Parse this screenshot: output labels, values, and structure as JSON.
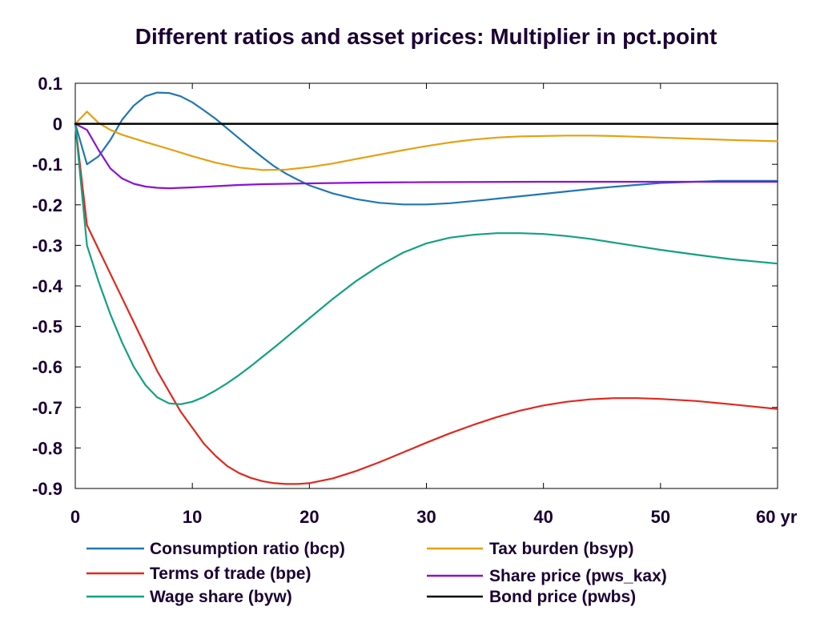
{
  "chart_data": {
    "type": "line",
    "title": "Different ratios and asset prices: Multiplier in pct.point",
    "xlabel": "",
    "ylabel": "",
    "x_unit_label": "yr",
    "xlim": [
      0,
      60
    ],
    "ylim": [
      -0.9,
      0.1
    ],
    "x_ticks": [
      0,
      10,
      20,
      30,
      40,
      50,
      60
    ],
    "x_tick_labels": [
      "0",
      "10",
      "20",
      "30",
      "40",
      "50",
      "60 yr"
    ],
    "y_ticks": [
      0.1,
      0,
      -0.1,
      -0.2,
      -0.3,
      -0.4,
      -0.5,
      -0.6,
      -0.7,
      -0.8,
      -0.9
    ],
    "y_tick_labels": [
      "0.1",
      "0",
      "-0.1",
      "-0.2",
      "-0.3",
      "-0.4",
      "-0.5",
      "-0.6",
      "-0.7",
      "-0.8",
      "-0.9"
    ],
    "grid": false,
    "legend_position": "bottom",
    "series": [
      {
        "name": "Consumption ratio (bcp)",
        "color": "#1f77b4",
        "points": [
          [
            0,
            0
          ],
          [
            1,
            -0.1
          ],
          [
            2,
            -0.08
          ],
          [
            3,
            -0.04
          ],
          [
            4,
            0.01
          ],
          [
            5,
            0.045
          ],
          [
            6,
            0.068
          ],
          [
            7,
            0.077
          ],
          [
            8,
            0.076
          ],
          [
            9,
            0.068
          ],
          [
            10,
            0.053
          ],
          [
            11,
            0.033
          ],
          [
            12,
            0.012
          ],
          [
            13,
            -0.012
          ],
          [
            14,
            -0.036
          ],
          [
            15,
            -0.06
          ],
          [
            16,
            -0.083
          ],
          [
            17,
            -0.105
          ],
          [
            18,
            -0.123
          ],
          [
            19,
            -0.138
          ],
          [
            20,
            -0.152
          ],
          [
            22,
            -0.172
          ],
          [
            24,
            -0.186
          ],
          [
            26,
            -0.195
          ],
          [
            28,
            -0.199
          ],
          [
            30,
            -0.199
          ],
          [
            32,
            -0.196
          ],
          [
            35,
            -0.188
          ],
          [
            40,
            -0.173
          ],
          [
            45,
            -0.158
          ],
          [
            50,
            -0.146
          ],
          [
            55,
            -0.141
          ],
          [
            60,
            -0.141
          ]
        ]
      },
      {
        "name": "Terms of trade (bpe)",
        "color": "#e0281e",
        "points": [
          [
            0,
            0
          ],
          [
            1,
            -0.25
          ],
          [
            2,
            -0.31
          ],
          [
            3,
            -0.37
          ],
          [
            4,
            -0.43
          ],
          [
            5,
            -0.49
          ],
          [
            6,
            -0.55
          ],
          [
            7,
            -0.61
          ],
          [
            8,
            -0.66
          ],
          [
            9,
            -0.71
          ],
          [
            10,
            -0.75
          ],
          [
            11,
            -0.79
          ],
          [
            12,
            -0.82
          ],
          [
            13,
            -0.845
          ],
          [
            14,
            -0.862
          ],
          [
            15,
            -0.874
          ],
          [
            16,
            -0.882
          ],
          [
            17,
            -0.887
          ],
          [
            18,
            -0.889
          ],
          [
            19,
            -0.889
          ],
          [
            20,
            -0.887
          ],
          [
            22,
            -0.875
          ],
          [
            24,
            -0.857
          ],
          [
            26,
            -0.835
          ],
          [
            28,
            -0.811
          ],
          [
            30,
            -0.787
          ],
          [
            32,
            -0.764
          ],
          [
            34,
            -0.743
          ],
          [
            36,
            -0.724
          ],
          [
            38,
            -0.708
          ],
          [
            40,
            -0.695
          ],
          [
            42,
            -0.686
          ],
          [
            44,
            -0.68
          ],
          [
            46,
            -0.677
          ],
          [
            48,
            -0.677
          ],
          [
            50,
            -0.679
          ],
          [
            53,
            -0.684
          ],
          [
            56,
            -0.692
          ],
          [
            60,
            -0.704
          ]
        ]
      },
      {
        "name": "Wage share (byw)",
        "color": "#12a082",
        "points": [
          [
            0,
            0
          ],
          [
            1,
            -0.3
          ],
          [
            2,
            -0.39
          ],
          [
            3,
            -0.47
          ],
          [
            4,
            -0.54
          ],
          [
            5,
            -0.6
          ],
          [
            6,
            -0.645
          ],
          [
            7,
            -0.675
          ],
          [
            8,
            -0.69
          ],
          [
            9,
            -0.692
          ],
          [
            10,
            -0.686
          ],
          [
            11,
            -0.674
          ],
          [
            12,
            -0.658
          ],
          [
            13,
            -0.64
          ],
          [
            14,
            -0.62
          ],
          [
            15,
            -0.598
          ],
          [
            16,
            -0.575
          ],
          [
            17,
            -0.552
          ],
          [
            18,
            -0.528
          ],
          [
            19,
            -0.504
          ],
          [
            20,
            -0.48
          ],
          [
            22,
            -0.432
          ],
          [
            24,
            -0.388
          ],
          [
            26,
            -0.35
          ],
          [
            28,
            -0.318
          ],
          [
            30,
            -0.295
          ],
          [
            32,
            -0.281
          ],
          [
            34,
            -0.274
          ],
          [
            36,
            -0.27
          ],
          [
            38,
            -0.27
          ],
          [
            40,
            -0.272
          ],
          [
            42,
            -0.277
          ],
          [
            44,
            -0.284
          ],
          [
            46,
            -0.293
          ],
          [
            48,
            -0.302
          ],
          [
            50,
            -0.311
          ],
          [
            53,
            -0.323
          ],
          [
            56,
            -0.334
          ],
          [
            60,
            -0.345
          ]
        ]
      },
      {
        "name": "Tax burden (bsyp)",
        "color": "#e5a00d",
        "points": [
          [
            0,
            0
          ],
          [
            1,
            0.03
          ],
          [
            2,
            0.002
          ],
          [
            3,
            -0.015
          ],
          [
            4,
            -0.027
          ],
          [
            6,
            -0.045
          ],
          [
            8,
            -0.062
          ],
          [
            10,
            -0.08
          ],
          [
            12,
            -0.096
          ],
          [
            14,
            -0.108
          ],
          [
            16,
            -0.114
          ],
          [
            18,
            -0.113
          ],
          [
            20,
            -0.107
          ],
          [
            22,
            -0.098
          ],
          [
            24,
            -0.087
          ],
          [
            26,
            -0.076
          ],
          [
            28,
            -0.065
          ],
          [
            30,
            -0.055
          ],
          [
            32,
            -0.046
          ],
          [
            34,
            -0.039
          ],
          [
            36,
            -0.034
          ],
          [
            38,
            -0.031
          ],
          [
            40,
            -0.03
          ],
          [
            42,
            -0.029
          ],
          [
            44,
            -0.029
          ],
          [
            46,
            -0.03
          ],
          [
            48,
            -0.032
          ],
          [
            50,
            -0.034
          ],
          [
            53,
            -0.037
          ],
          [
            56,
            -0.04
          ],
          [
            60,
            -0.043
          ]
        ]
      },
      {
        "name": "Share price (pws_kax)",
        "color": "#8b12d2",
        "points": [
          [
            0,
            0
          ],
          [
            1,
            -0.015
          ],
          [
            2,
            -0.065
          ],
          [
            3,
            -0.11
          ],
          [
            4,
            -0.135
          ],
          [
            5,
            -0.148
          ],
          [
            6,
            -0.155
          ],
          [
            7,
            -0.158
          ],
          [
            8,
            -0.159
          ],
          [
            10,
            -0.157
          ],
          [
            12,
            -0.154
          ],
          [
            14,
            -0.151
          ],
          [
            16,
            -0.149
          ],
          [
            18,
            -0.148
          ],
          [
            20,
            -0.147
          ],
          [
            25,
            -0.145
          ],
          [
            30,
            -0.144
          ],
          [
            40,
            -0.143
          ],
          [
            50,
            -0.143
          ],
          [
            60,
            -0.143
          ]
        ]
      },
      {
        "name": "Bond price (pwbs)",
        "color": "#000000",
        "points": [
          [
            0,
            0
          ],
          [
            60,
            0
          ]
        ]
      }
    ]
  }
}
